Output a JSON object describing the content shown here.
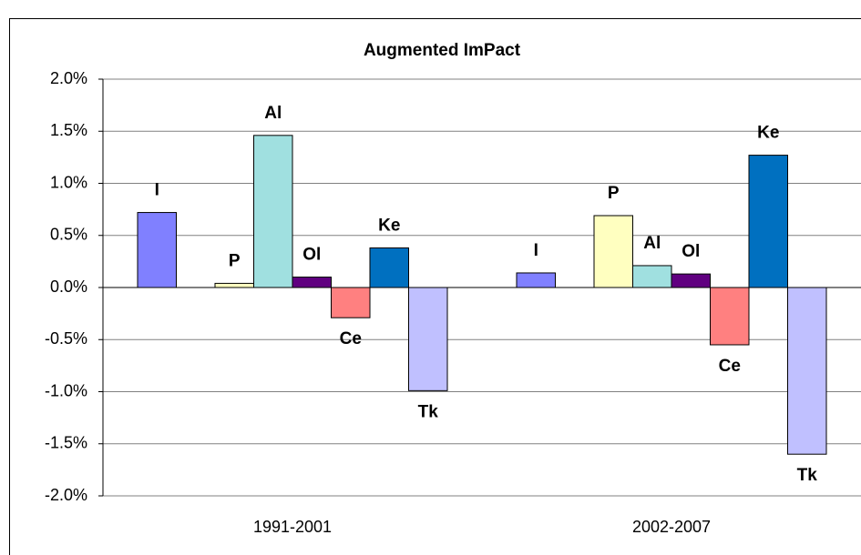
{
  "chart_data": {
    "type": "bar",
    "title": "Augmented ImPact",
    "categories": [
      "1991-2001",
      "2002-2007"
    ],
    "series": [
      {
        "name": "I",
        "color": "#8080ff",
        "values": [
          0.72,
          0.14
        ]
      },
      {
        "name": "P",
        "color": "#ffffc0",
        "values": [
          0.04,
          0.69
        ]
      },
      {
        "name": "Al",
        "color": "#a0e0e0",
        "values": [
          1.46,
          0.21
        ]
      },
      {
        "name": "Ol",
        "color": "#600080",
        "values": [
          0.1,
          0.13
        ]
      },
      {
        "name": "Ce",
        "color": "#ff8080",
        "values": [
          -0.29,
          -0.55
        ]
      },
      {
        "name": "Ke",
        "color": "#0070c0",
        "values": [
          0.38,
          1.27
        ]
      },
      {
        "name": "Tk",
        "color": "#c0c0ff",
        "values": [
          -0.99,
          -1.6
        ]
      }
    ],
    "ylim": [
      -2.0,
      2.0
    ],
    "yticks": [
      {
        "value": -2.0,
        "label": "-2.0%"
      },
      {
        "value": -1.5,
        "label": "-1.5%"
      },
      {
        "value": -1.0,
        "label": "-1.0%"
      },
      {
        "value": -0.5,
        "label": "-0.5%"
      },
      {
        "value": 0,
        "label": "0.0%"
      },
      {
        "value": 0.5,
        "label": "0.5%"
      },
      {
        "value": 1.0,
        "label": "1.0%"
      },
      {
        "value": 1.5,
        "label": "1.5%"
      },
      {
        "value": 2.0,
        "label": "2.0%"
      }
    ],
    "grid": true
  }
}
